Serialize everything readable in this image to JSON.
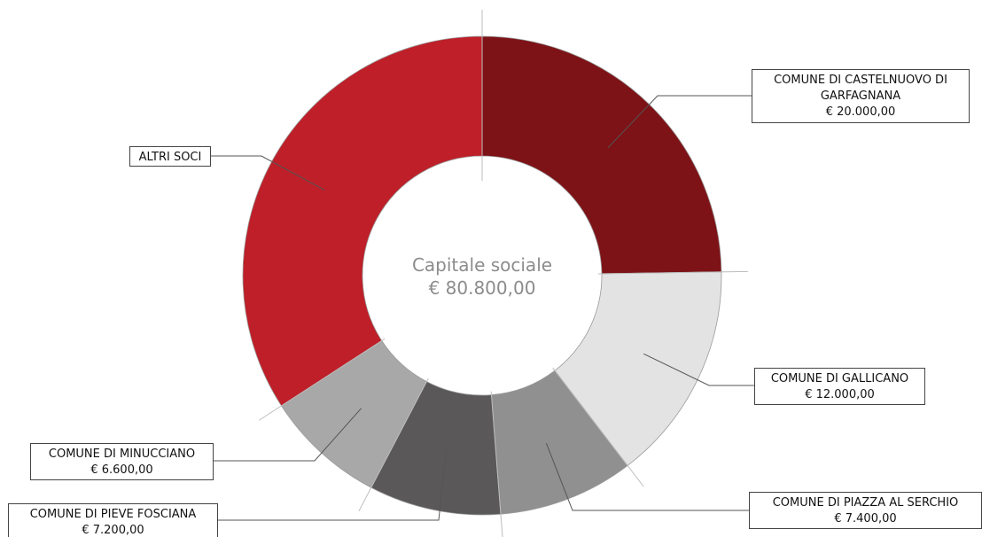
{
  "chart_data": {
    "type": "pie",
    "donut": true,
    "center_label": [
      "Capitale sociale",
      "€ 80.800,00"
    ],
    "start_angle_deg": 0,
    "direction": "clockwise",
    "slices": [
      {
        "name_lines": [
          "COMUNE DI CASTELNUOVO DI",
          "GARFAGNANA"
        ],
        "value": 20000,
        "value_label": "€ 20.000,00",
        "color": "#7d1317"
      },
      {
        "name_lines": [
          "COMUNE DI GALLICANO"
        ],
        "value": 12000,
        "value_label": "€ 12.000,00",
        "color": "#e3e3e3"
      },
      {
        "name_lines": [
          "COMUNE DI PIAZZA AL SERCHIO"
        ],
        "value": 7400,
        "value_label": "€ 7.400,00",
        "color": "#909090"
      },
      {
        "name_lines": [
          "COMUNE DI PIEVE FOSCIANA"
        ],
        "value": 7200,
        "value_label": "€ 7.200,00",
        "color": "#5a5859"
      },
      {
        "name_lines": [
          "COMUNE DI MINUCCIANO"
        ],
        "value": 6600,
        "value_label": "€ 6.600,00",
        "color": "#a8a8a8"
      },
      {
        "name_lines": [
          "ALTRI SOCI"
        ],
        "value": 27600,
        "value_label": "",
        "color": "#be1f28"
      }
    ]
  }
}
